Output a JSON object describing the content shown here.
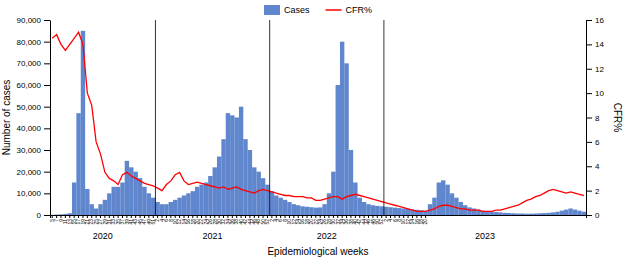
{
  "chart_data": {
    "type": "bar",
    "xlabel": "Epidemiological weeks",
    "ylabel": "Number of cases",
    "y2label": "CFR%",
    "legend": "top",
    "grid": false,
    "annotations": [
      {
        "text": "2020",
        "first": 0,
        "last": 23
      },
      {
        "text": "2021",
        "first": 24,
        "last": 49
      },
      {
        "text": "2022",
        "first": 50,
        "last": 75
      },
      {
        "text": "2023",
        "first": 76,
        "last": 121
      }
    ],
    "categories": [
      "5",
      "7",
      "9",
      "11",
      "13",
      "15",
      "17",
      "19",
      "21",
      "23",
      "25",
      "27",
      "29",
      "31",
      "33",
      "35",
      "37",
      "39",
      "41",
      "43",
      "45",
      "47",
      "49",
      "51",
      "2",
      "4",
      "6",
      "8",
      "10",
      "12",
      "14",
      "16",
      "18",
      "20",
      "22",
      "24",
      "26",
      "28",
      "30",
      "32",
      "34",
      "36",
      "38",
      "40",
      "42",
      "44",
      "46",
      "48",
      "50",
      "52",
      "2",
      "4",
      "6",
      "8",
      "10",
      "12",
      "14",
      "16",
      "18",
      "20",
      "22",
      "24",
      "26",
      "28",
      "30",
      "32",
      "34",
      "36",
      "38",
      "40",
      "42",
      "44",
      "46",
      "48",
      "50",
      "52",
      "2",
      "4",
      "6",
      "8",
      "10",
      "12",
      "14",
      "16",
      "18",
      "20",
      null,
      null,
      null,
      null,
      null,
      null,
      null,
      null,
      null,
      null,
      null,
      null,
      null,
      null,
      null,
      null,
      null,
      null,
      null,
      null,
      null,
      null,
      null,
      null,
      null,
      null,
      null,
      null,
      null,
      null,
      null,
      null,
      null,
      null,
      null,
      null
    ],
    "ylim": [
      0,
      90000
    ],
    "yticks": [
      {
        "value": 0,
        "label": "0"
      },
      {
        "value": 10000,
        "label": "10,000"
      },
      {
        "value": 20000,
        "label": "20,000"
      },
      {
        "value": 30000,
        "label": "30,000"
      },
      {
        "value": 40000,
        "label": "40,000"
      },
      {
        "value": 50000,
        "label": "50,000"
      },
      {
        "value": 60000,
        "label": "60,000"
      },
      {
        "value": 70000,
        "label": "70,000"
      },
      {
        "value": 80000,
        "label": "80,000"
      },
      {
        "value": 90000,
        "label": "90,000"
      }
    ],
    "y2lim": [
      0,
      16
    ],
    "y2ticks": [
      0,
      2,
      4,
      6,
      8,
      10,
      12,
      14,
      16
    ],
    "series": [
      {
        "name": "Cases",
        "type": "bar",
        "color": "#4472C4",
        "values": [
          100,
          200,
          300,
          500,
          800,
          15000,
          47000,
          85000,
          12000,
          5000,
          3000,
          5000,
          7000,
          10000,
          13000,
          13000,
          15000,
          25000,
          22000,
          20000,
          17000,
          13000,
          10000,
          8000,
          6000,
          5000,
          5000,
          6000,
          7000,
          8000,
          9000,
          10000,
          11000,
          13000,
          14000,
          15000,
          18000,
          22000,
          27000,
          35000,
          47000,
          46000,
          45000,
          50000,
          35000,
          30000,
          22000,
          20000,
          17000,
          14000,
          11000,
          9000,
          8000,
          7000,
          6000,
          5000,
          4500,
          4000,
          3800,
          3600,
          3400,
          3500,
          5000,
          10000,
          20000,
          60000,
          80000,
          70000,
          30000,
          15000,
          8000,
          6000,
          5000,
          4500,
          4200,
          4000,
          3800,
          3600,
          3400,
          3200,
          3000,
          2800,
          2600,
          2400,
          2200,
          2000,
          5000,
          8000,
          15000,
          16000,
          14000,
          10000,
          8000,
          6000,
          4500,
          3500,
          3000,
          2500,
          2000,
          1800,
          1600,
          1400,
          1200,
          1000,
          900,
          800,
          700,
          700,
          600,
          600,
          700,
          800,
          900,
          1000,
          1200,
          1500,
          2000,
          2500,
          3000,
          2500,
          2000,
          1500
        ]
      },
      {
        "name": "CFR%",
        "type": "line",
        "axis": "y2",
        "color": "#FF0000",
        "values": [
          14.5,
          14.8,
          14.0,
          13.5,
          14.0,
          14.5,
          15.0,
          14.0,
          10.0,
          9.0,
          6.0,
          5.0,
          3.5,
          3.0,
          2.8,
          2.5,
          3.3,
          3.5,
          3.2,
          3.0,
          2.8,
          2.6,
          2.5,
          2.4,
          2.2,
          2.0,
          2.5,
          2.8,
          3.3,
          3.5,
          2.8,
          2.5,
          2.6,
          2.7,
          2.6,
          2.5,
          2.4,
          2.3,
          2.2,
          2.3,
          2.1,
          2.2,
          2.3,
          2.1,
          2.0,
          1.9,
          1.8,
          2.0,
          2.1,
          2.0,
          1.9,
          1.8,
          1.7,
          1.6,
          1.6,
          1.5,
          1.5,
          1.5,
          1.4,
          1.4,
          1.2,
          1.2,
          1.3,
          1.4,
          1.5,
          1.5,
          1.3,
          1.5,
          1.6,
          1.7,
          1.6,
          1.5,
          1.4,
          1.3,
          1.2,
          1.1,
          1.0,
          0.9,
          0.8,
          0.7,
          0.6,
          0.5,
          0.4,
          0.3,
          0.3,
          0.3,
          0.4,
          0.5,
          0.7,
          0.8,
          0.8,
          0.7,
          0.6,
          0.5,
          0.5,
          0.4,
          0.4,
          0.4,
          0.3,
          0.3,
          0.3,
          0.4,
          0.4,
          0.5,
          0.6,
          0.7,
          0.8,
          1.0,
          1.2,
          1.3,
          1.5,
          1.6,
          1.8,
          2.0,
          2.1,
          2.0,
          1.9,
          1.8,
          1.9,
          1.8,
          1.7,
          1.6
        ]
      }
    ]
  }
}
